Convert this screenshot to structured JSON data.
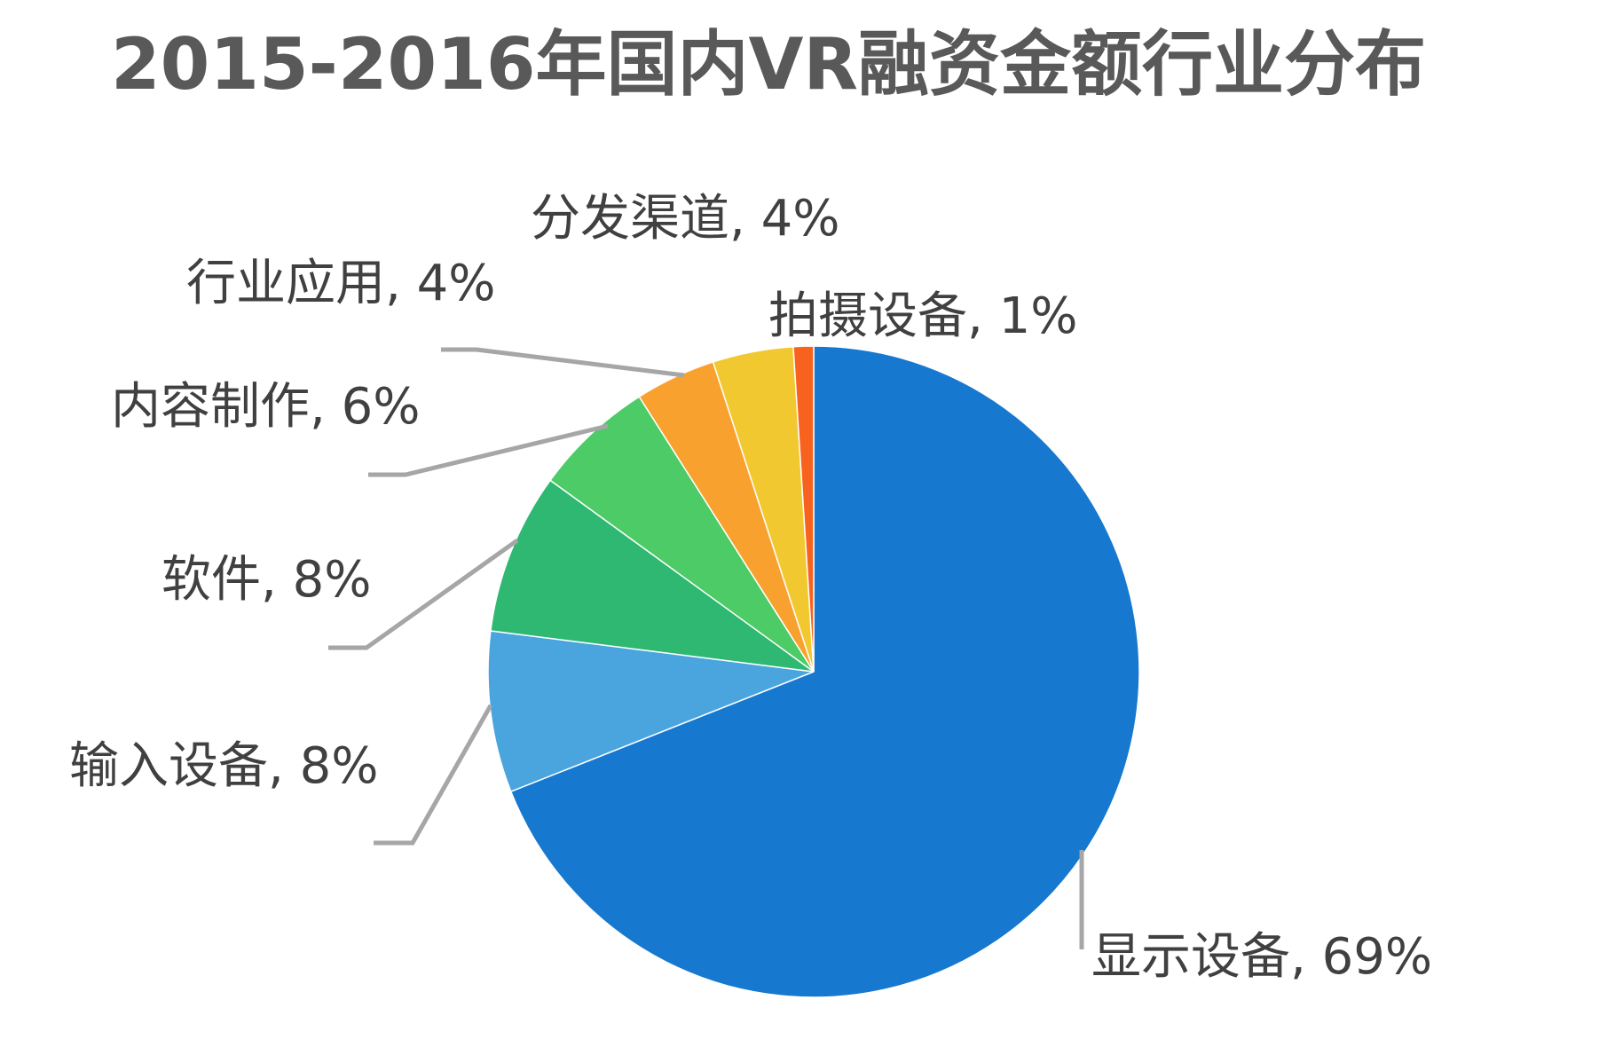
{
  "chart_data": {
    "type": "pie",
    "title": "2015-2016年国内VR融资金额行业分布",
    "unit": "%",
    "start_angle_deg": 0,
    "direction": "clockwise",
    "slices": [
      {
        "name": "显示设备",
        "value": 69,
        "label": "显示设备, 69%",
        "color": "#1678CF"
      },
      {
        "name": "输入设备",
        "value": 8,
        "label": "输入设备, 8%",
        "color": "#4AA5DF"
      },
      {
        "name": "软件",
        "value": 8,
        "label": "软件, 8%",
        "color": "#2EB872"
      },
      {
        "name": "内容制作",
        "value": 6,
        "label": "内容制作, 6%",
        "color": "#4CCB66"
      },
      {
        "name": "行业应用",
        "value": 4,
        "label": "行业应用, 4%",
        "color": "#F9A12E"
      },
      {
        "name": "分发渠道",
        "value": 4,
        "label": "分发渠道, 4%",
        "color": "#F2C831"
      },
      {
        "name": "拍摄设备",
        "value": 1,
        "label": "拍摄设备, 1%",
        "color": "#F7631E"
      }
    ]
  },
  "colors": {
    "title": "#595959",
    "label": "#404040",
    "leader_line": "#a6a6a6"
  }
}
